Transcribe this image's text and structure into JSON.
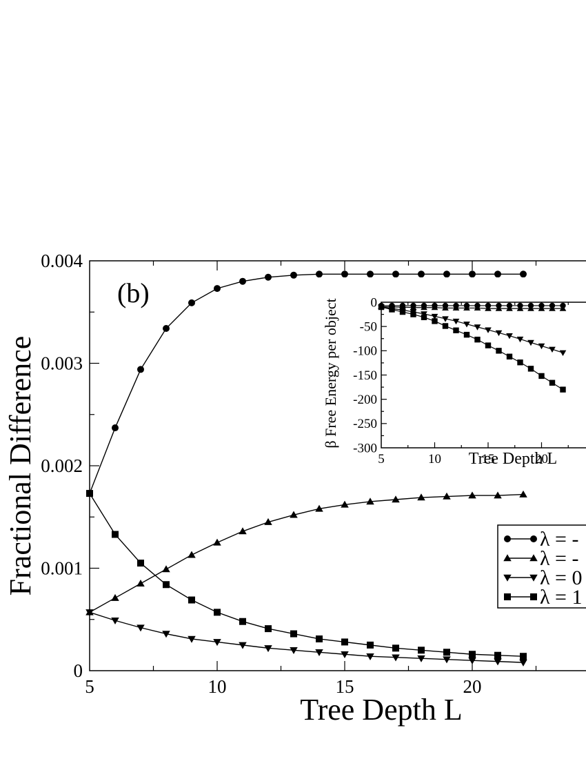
{
  "panel_label": "(b)",
  "chart_data": [
    {
      "type": "line",
      "title": "",
      "xlabel": "Tree Depth L",
      "ylabel": "Fractional Difference",
      "xlim": [
        5,
        25
      ],
      "ylim": [
        0,
        0.004
      ],
      "x_ticks": [
        5,
        10,
        15,
        20
      ],
      "x_tick_labels": [
        "5",
        "10",
        "15",
        "20"
      ],
      "y_ticks": [
        0,
        0.001,
        0.002,
        0.003,
        0.004
      ],
      "y_tick_labels": [
        "0",
        "0.001",
        "0.002",
        "0.003",
        "0.004"
      ],
      "grid": false,
      "legend_placement": "right",
      "x": [
        5,
        6,
        7,
        8,
        9,
        10,
        11,
        12,
        13,
        14,
        15,
        16,
        17,
        18,
        19,
        20,
        21,
        22
      ],
      "series": [
        {
          "name": "λ = -",
          "marker": "circle",
          "values": [
            0.00173,
            0.00237,
            0.00294,
            0.00334,
            0.00359,
            0.00373,
            0.0038,
            0.00384,
            0.00386,
            0.00387,
            0.00387,
            0.00387,
            0.00387,
            0.00387,
            0.00387,
            0.00387,
            0.00387,
            0.00387
          ]
        },
        {
          "name": "λ = -",
          "marker": "triangle-up",
          "values": [
            0.00057,
            0.00071,
            0.00085,
            0.00099,
            0.00113,
            0.00125,
            0.00136,
            0.00145,
            0.00152,
            0.00158,
            0.00162,
            0.00165,
            0.00167,
            0.00169,
            0.0017,
            0.00171,
            0.00171,
            0.00172
          ]
        },
        {
          "name": "λ = 0",
          "marker": "triangle-down",
          "values": [
            0.00057,
            0.00049,
            0.00042,
            0.00036,
            0.00031,
            0.00028,
            0.00025,
            0.00022,
            0.0002,
            0.00018,
            0.00016,
            0.00014,
            0.00013,
            0.00012,
            0.00011,
            0.0001,
            9e-05,
            8e-05
          ]
        },
        {
          "name": "λ = 1",
          "marker": "square",
          "values": [
            0.00173,
            0.00133,
            0.00105,
            0.00084,
            0.00069,
            0.00057,
            0.00048,
            0.00041,
            0.00036,
            0.00031,
            0.00028,
            0.00025,
            0.00022,
            0.0002,
            0.00018,
            0.00016,
            0.00015,
            0.00014
          ]
        }
      ]
    },
    {
      "type": "line",
      "title": "",
      "xlabel": "Tree Depth L",
      "ylabel": "β Free Energy per object",
      "xlim": [
        5,
        25
      ],
      "ylim": [
        -300,
        0
      ],
      "x_ticks": [
        5,
        10,
        15,
        20
      ],
      "x_tick_labels": [
        "5",
        "10",
        "15",
        "20"
      ],
      "y_ticks": [
        -300,
        -250,
        -200,
        -150,
        -100,
        -50,
        0
      ],
      "y_tick_labels": [
        "-300",
        "-250",
        "-200",
        "-150",
        "-100",
        "-50",
        "0"
      ],
      "grid": false,
      "x": [
        5,
        6,
        7,
        8,
        9,
        10,
        11,
        12,
        13,
        14,
        15,
        16,
        17,
        18,
        19,
        20,
        21,
        22
      ],
      "series": [
        {
          "marker": "circle",
          "values": [
            -7,
            -7,
            -7,
            -7,
            -7,
            -7,
            -7,
            -7,
            -7,
            -7,
            -7,
            -7,
            -7,
            -7,
            -7,
            -7,
            -7,
            -7
          ]
        },
        {
          "marker": "triangle-up",
          "values": [
            -9,
            -10,
            -10,
            -11,
            -11,
            -11,
            -12,
            -12,
            -12,
            -12,
            -13,
            -13,
            -13,
            -13,
            -13,
            -13,
            -13,
            -13
          ]
        },
        {
          "marker": "triangle-down",
          "values": [
            -10,
            -13,
            -16,
            -20,
            -24,
            -29,
            -34,
            -39,
            -45,
            -51,
            -57,
            -63,
            -69,
            -76,
            -83,
            -90,
            -97,
            -104
          ]
        },
        {
          "marker": "square",
          "values": [
            -10,
            -15,
            -20,
            -25,
            -31,
            -39,
            -49,
            -58,
            -67,
            -77,
            -89,
            -100,
            -112,
            -124,
            -137,
            -152,
            -166,
            -180
          ]
        }
      ]
    }
  ]
}
